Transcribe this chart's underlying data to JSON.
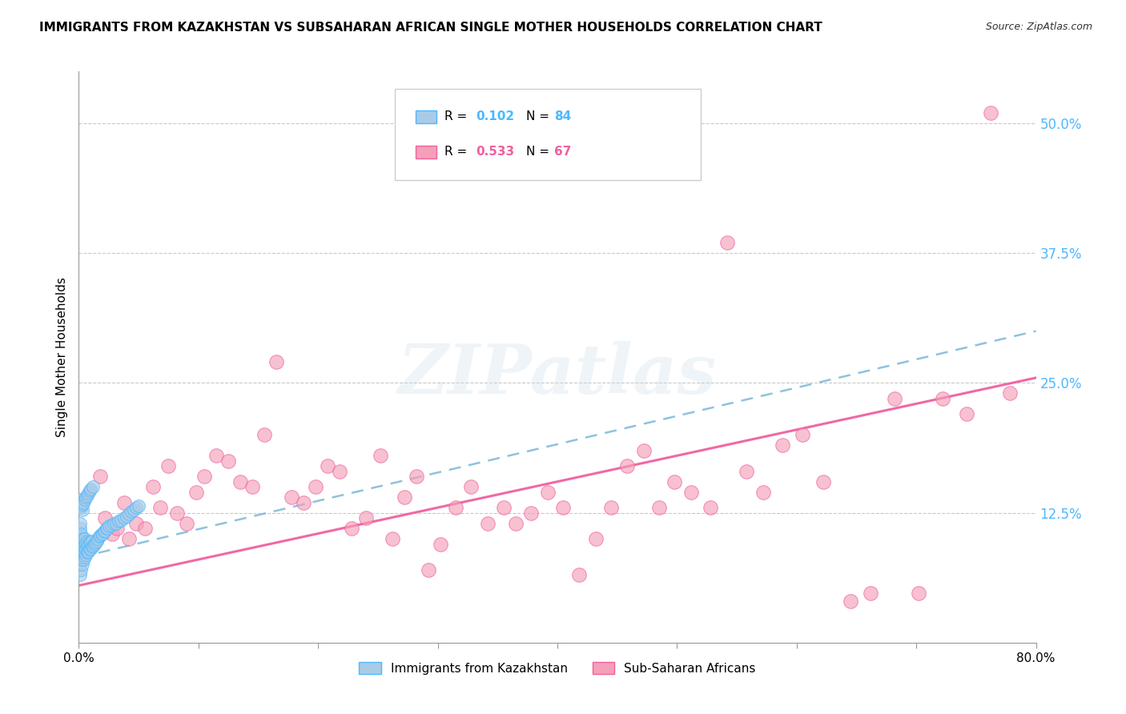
{
  "title": "IMMIGRANTS FROM KAZAKHSTAN VS SUBSAHARAN AFRICAN SINGLE MOTHER HOUSEHOLDS CORRELATION CHART",
  "source": "Source: ZipAtlas.com",
  "ylabel": "Single Mother Households",
  "xlim": [
    0.0,
    0.8
  ],
  "ylim": [
    0.0,
    0.55
  ],
  "xticks": [
    0.0,
    0.1,
    0.2,
    0.3,
    0.4,
    0.5,
    0.6,
    0.7,
    0.8
  ],
  "xticklabels": [
    "0.0%",
    "",
    "",
    "",
    "",
    "",
    "",
    "",
    "80.0%"
  ],
  "yticks_right": [
    0.125,
    0.25,
    0.375,
    0.5
  ],
  "ytick_labels_right": [
    "12.5%",
    "25.0%",
    "37.5%",
    "50.0%"
  ],
  "legend_label1": "Immigrants from Kazakhstan",
  "legend_label2": "Sub-Saharan Africans",
  "color_blue": "#a8cce8",
  "color_pink": "#f4a0b8",
  "color_blue_dark": "#4db8ff",
  "color_pink_dark": "#f060a0",
  "color_blue_line": "#7ab8d8",
  "color_pink_line": "#f06090",
  "watermark": "ZIPatlas",
  "title_fontsize": 11,
  "source_fontsize": 9,
  "blue_scatter_x": [
    0.001,
    0.001,
    0.001,
    0.001,
    0.001,
    0.001,
    0.001,
    0.001,
    0.001,
    0.001,
    0.002,
    0.002,
    0.002,
    0.002,
    0.002,
    0.002,
    0.002,
    0.003,
    0.003,
    0.003,
    0.003,
    0.003,
    0.004,
    0.004,
    0.004,
    0.004,
    0.005,
    0.005,
    0.005,
    0.005,
    0.006,
    0.006,
    0.006,
    0.007,
    0.007,
    0.007,
    0.008,
    0.008,
    0.009,
    0.009,
    0.01,
    0.01,
    0.011,
    0.011,
    0.012,
    0.013,
    0.014,
    0.015,
    0.016,
    0.017,
    0.018,
    0.019,
    0.02,
    0.021,
    0.022,
    0.023,
    0.024,
    0.025,
    0.027,
    0.029,
    0.031,
    0.033,
    0.035,
    0.038,
    0.04,
    0.042,
    0.044,
    0.046,
    0.048,
    0.05,
    0.001,
    0.001,
    0.002,
    0.002,
    0.003,
    0.003,
    0.004,
    0.005,
    0.006,
    0.007,
    0.008,
    0.009,
    0.01,
    0.012
  ],
  "blue_scatter_y": [
    0.065,
    0.075,
    0.08,
    0.085,
    0.09,
    0.095,
    0.1,
    0.105,
    0.11,
    0.115,
    0.07,
    0.08,
    0.085,
    0.09,
    0.095,
    0.1,
    0.105,
    0.075,
    0.082,
    0.088,
    0.093,
    0.098,
    0.08,
    0.088,
    0.094,
    0.1,
    0.082,
    0.088,
    0.094,
    0.1,
    0.085,
    0.09,
    0.096,
    0.087,
    0.092,
    0.098,
    0.088,
    0.095,
    0.09,
    0.097,
    0.09,
    0.097,
    0.092,
    0.098,
    0.093,
    0.095,
    0.096,
    0.098,
    0.1,
    0.102,
    0.103,
    0.105,
    0.105,
    0.107,
    0.108,
    0.11,
    0.11,
    0.112,
    0.113,
    0.115,
    0.115,
    0.117,
    0.118,
    0.12,
    0.122,
    0.124,
    0.126,
    0.128,
    0.13,
    0.132,
    0.135,
    0.138,
    0.13,
    0.132,
    0.128,
    0.133,
    0.135,
    0.138,
    0.14,
    0.142,
    0.144,
    0.146,
    0.148,
    0.15
  ],
  "pink_scatter_x": [
    0.008,
    0.012,
    0.018,
    0.022,
    0.028,
    0.032,
    0.038,
    0.042,
    0.048,
    0.055,
    0.062,
    0.068,
    0.075,
    0.082,
    0.09,
    0.098,
    0.105,
    0.115,
    0.125,
    0.135,
    0.145,
    0.155,
    0.165,
    0.178,
    0.188,
    0.198,
    0.208,
    0.218,
    0.228,
    0.24,
    0.252,
    0.262,
    0.272,
    0.282,
    0.292,
    0.302,
    0.315,
    0.328,
    0.342,
    0.355,
    0.365,
    0.378,
    0.392,
    0.405,
    0.418,
    0.432,
    0.445,
    0.458,
    0.472,
    0.485,
    0.498,
    0.512,
    0.528,
    0.542,
    0.558,
    0.572,
    0.588,
    0.605,
    0.622,
    0.645,
    0.662,
    0.682,
    0.702,
    0.722,
    0.742,
    0.762,
    0.778
  ],
  "pink_scatter_y": [
    0.09,
    0.095,
    0.16,
    0.12,
    0.105,
    0.11,
    0.135,
    0.1,
    0.115,
    0.11,
    0.15,
    0.13,
    0.17,
    0.125,
    0.115,
    0.145,
    0.16,
    0.18,
    0.175,
    0.155,
    0.15,
    0.2,
    0.27,
    0.14,
    0.135,
    0.15,
    0.17,
    0.165,
    0.11,
    0.12,
    0.18,
    0.1,
    0.14,
    0.16,
    0.07,
    0.095,
    0.13,
    0.15,
    0.115,
    0.13,
    0.115,
    0.125,
    0.145,
    0.13,
    0.065,
    0.1,
    0.13,
    0.17,
    0.185,
    0.13,
    0.155,
    0.145,
    0.13,
    0.385,
    0.165,
    0.145,
    0.19,
    0.2,
    0.155,
    0.04,
    0.048,
    0.235,
    0.048,
    0.235,
    0.22,
    0.51,
    0.24
  ],
  "blue_trendline_x": [
    0.0,
    0.8
  ],
  "blue_trendline_y": [
    0.082,
    0.3
  ],
  "pink_trendline_x": [
    0.0,
    0.8
  ],
  "pink_trendline_y": [
    0.055,
    0.255
  ]
}
